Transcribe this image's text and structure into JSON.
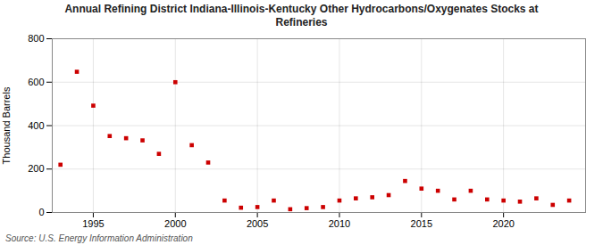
{
  "chart_data": {
    "type": "scatter",
    "title": "Annual Refining District Indiana-Illinois-Kentucky Other Hydrocarbons/Oxygenates Stocks at\nRefineries",
    "ylabel": "Thousand Barrels",
    "source": "Source: U.S. Energy Information Administration",
    "x": [
      1993,
      1994,
      1995,
      1996,
      1997,
      1998,
      1999,
      2000,
      2001,
      2002,
      2003,
      2004,
      2005,
      2006,
      2007,
      2008,
      2009,
      2010,
      2011,
      2012,
      2013,
      2014,
      2015,
      2016,
      2017,
      2018,
      2019,
      2020,
      2021,
      2022,
      2023,
      2024
    ],
    "values": [
      220,
      648,
      492,
      352,
      342,
      332,
      270,
      600,
      310,
      230,
      55,
      22,
      25,
      55,
      15,
      20,
      25,
      55,
      65,
      70,
      80,
      145,
      110,
      100,
      60,
      100,
      60,
      55,
      50,
      65,
      35,
      55
    ],
    "color": "#cc0000",
    "marker": "square",
    "xlim": [
      1992.5,
      2025
    ],
    "xticks": [
      1995,
      2000,
      2005,
      2010,
      2015,
      2020
    ],
    "ylim": [
      0,
      800
    ],
    "yticks": [
      0,
      200,
      400,
      600,
      800
    ],
    "grid": true
  }
}
